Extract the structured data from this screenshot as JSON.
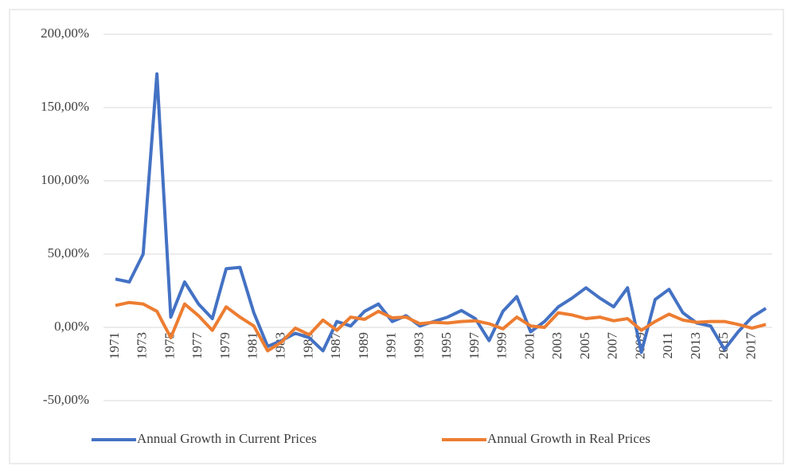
{
  "chart_data": {
    "type": "line",
    "categories": [
      "1971",
      null,
      "1973",
      null,
      "1975",
      null,
      "1977",
      null,
      "1979",
      null,
      "1981",
      null,
      "1983",
      null,
      "1985",
      null,
      "1987",
      null,
      "1989",
      null,
      "1991",
      null,
      "1993",
      null,
      "1995",
      null,
      "1997",
      null,
      "1999",
      null,
      "2001",
      null,
      "2003",
      null,
      "2005",
      null,
      "2007",
      null,
      "2009",
      null,
      "2011",
      null,
      "2013",
      null,
      "2015",
      null,
      "2017",
      null
    ],
    "series": [
      {
        "name": "Annual Growth in Current Prices",
        "color": "#4472c4",
        "values": [
          33,
          31,
          50,
          173,
          7,
          31,
          16,
          6,
          40,
          41,
          10,
          -13,
          -9,
          -4,
          -7,
          -16,
          4,
          1,
          11,
          16,
          4,
          8,
          1,
          4,
          7,
          11.5,
          6,
          -9,
          11,
          21,
          -3,
          4,
          14,
          20,
          27,
          20,
          14,
          27,
          -17,
          19,
          26,
          10,
          3,
          1,
          -15,
          -3,
          7,
          13
        ]
      },
      {
        "name": "Annual Growth in Real Prices",
        "color": "#ed7d31",
        "values": [
          15,
          17,
          16,
          11,
          -7,
          16,
          8,
          -2,
          14,
          7,
          1,
          -16,
          -10,
          -0.5,
          -5,
          5,
          -2,
          7,
          5.5,
          11,
          6.5,
          7,
          2.5,
          3.5,
          3,
          4,
          4.5,
          2.5,
          -1,
          7,
          1,
          0,
          10,
          8.5,
          6,
          7,
          4.5,
          6,
          -2,
          4,
          9,
          5,
          3.5,
          4,
          4,
          2,
          -0.5,
          2
        ]
      }
    ],
    "ylim": [
      -50,
      200
    ],
    "yticks": [
      {
        "value": -50,
        "label": "-50,00%"
      },
      {
        "value": 0,
        "label": "0,00%"
      },
      {
        "value": 50,
        "label": "50,00%"
      },
      {
        "value": 100,
        "label": "100,00%"
      },
      {
        "value": 150,
        "label": "150,00%"
      },
      {
        "value": 200,
        "label": "200,00%"
      }
    ],
    "grid": true,
    "legend": "bottom"
  }
}
